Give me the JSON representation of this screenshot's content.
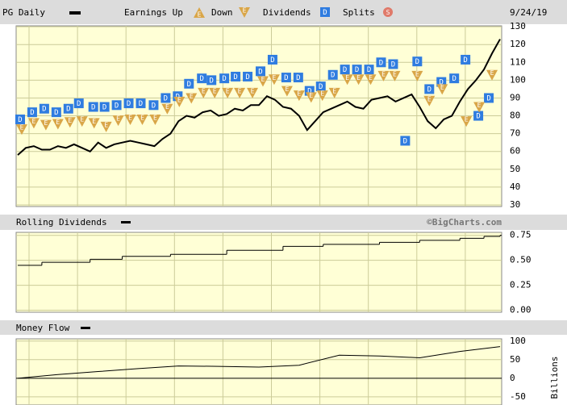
{
  "chart_data": [
    {
      "type": "line",
      "title": "PG Daily",
      "date": "9/24/19",
      "legend": {
        "earnings_up": "Earnings Up",
        "earnings_down": "Down",
        "dividends": "Dividends",
        "splits": "Splits"
      },
      "dividend_icon": "D",
      "earnings_icon": "E",
      "splits_icon": "S",
      "line_color": "#000000",
      "dividend_color": "#2f7ce0",
      "earnings_color": "#d9a648",
      "splits_color": "#e07a6a",
      "values": [
        58,
        62,
        63,
        61,
        61,
        63,
        62,
        64,
        62,
        60,
        65,
        62,
        64,
        65,
        66,
        65,
        64,
        63,
        67,
        70,
        77,
        80,
        79,
        82,
        83,
        80,
        81,
        84,
        83,
        86,
        86,
        91,
        89,
        85,
        84,
        80,
        72,
        77,
        82,
        84,
        86,
        88,
        85,
        84,
        89,
        90,
        91,
        88,
        90,
        92,
        85,
        77,
        73,
        78,
        80,
        88,
        95,
        100,
        106,
        115,
        123
      ],
      "dividends": {
        "x": [
          0.3,
          1.8,
          3.3,
          4.8,
          6.3,
          7.6,
          9.4,
          10.8,
          12.3,
          13.8,
          15.3,
          16.9,
          18.4,
          19.9,
          21.3,
          22.9,
          24.1,
          25.7,
          27.1,
          28.6,
          30.2,
          31.7,
          33.4,
          34.9,
          36.3,
          37.7,
          39.2,
          40.7,
          42.2,
          43.7,
          45.2,
          46.7,
          48.2,
          49.7,
          51.2,
          52.7,
          54.3,
          55.7,
          57.3,
          58.6
        ],
        "y": [
          78,
          82,
          84,
          82,
          84,
          87,
          85,
          85,
          86,
          87,
          87,
          86,
          90,
          91,
          98,
          101,
          100,
          101,
          102,
          102,
          105,
          111.5,
          101.5,
          101.5,
          94,
          96.5,
          103,
          106,
          106,
          106,
          110,
          109,
          66,
          110.5,
          95,
          99,
          101,
          111.5,
          80,
          90
        ]
      },
      "earnings_down": {
        "x": [
          0.5,
          2.0,
          3.5,
          5.0,
          6.5,
          8.0,
          9.5,
          11.0,
          12.5,
          14.0,
          15.5,
          17.1,
          18.6,
          20.1,
          21.6,
          23.1,
          24.5,
          26.1,
          27.6,
          29.2,
          30.5,
          31.9,
          33.5,
          35.0,
          36.5,
          37.9,
          39.4,
          41.0,
          42.4,
          43.9,
          45.5,
          46.9,
          49.7,
          51.2,
          52.8,
          55.8,
          57.4,
          59.0
        ],
        "y": [
          72.5,
          76,
          75,
          75.5,
          76.5,
          77,
          76,
          74,
          77.5,
          78,
          78,
          78,
          84,
          88,
          90,
          93,
          93,
          93,
          93,
          93,
          99.5,
          100.5,
          94,
          91.5,
          90.5,
          91.5,
          93,
          100.5,
          100.5,
          100.5,
          102.5,
          102.5,
          102.5,
          88.5,
          95,
          77,
          85,
          103
        ]
      },
      "ylim": [
        29.1,
        130.5
      ],
      "yticks": [
        130,
        120,
        110,
        100,
        90,
        80,
        70,
        60,
        50,
        40,
        30
      ],
      "grid": true
    },
    {
      "type": "step",
      "title": "Rolling Dividends",
      "watermark": "©BigCharts.com",
      "line_color": "#000000",
      "x": [
        0,
        3,
        9,
        13,
        19,
        26,
        33,
        38,
        45,
        50,
        55,
        58,
        60
      ],
      "values": [
        0.45,
        0.48,
        0.51,
        0.54,
        0.56,
        0.6,
        0.64,
        0.66,
        0.68,
        0.7,
        0.72,
        0.74,
        0.75
      ],
      "ylim": [
        -0.02,
        0.78
      ],
      "yticks": [
        {
          "value": 0.75,
          "label": "0.75"
        },
        {
          "value": 0.5,
          "label": "0.50"
        },
        {
          "value": 0.25,
          "label": "0.25"
        },
        {
          "value": 0,
          "label": "0.00"
        }
      ],
      "grid": true
    },
    {
      "type": "line",
      "title": "Money Flow",
      "y_label": "Billions",
      "line_color": "#000000",
      "x": [
        0,
        5,
        10,
        15,
        20,
        25,
        30,
        35,
        40,
        45,
        50,
        55,
        60
      ],
      "values": [
        0,
        10,
        18,
        26,
        33,
        32,
        30,
        35,
        62,
        60,
        55,
        72,
        85
      ],
      "ylim": [
        -72,
        106
      ],
      "yticks": [
        100,
        50,
        0,
        -50
      ],
      "grid": true
    }
  ]
}
